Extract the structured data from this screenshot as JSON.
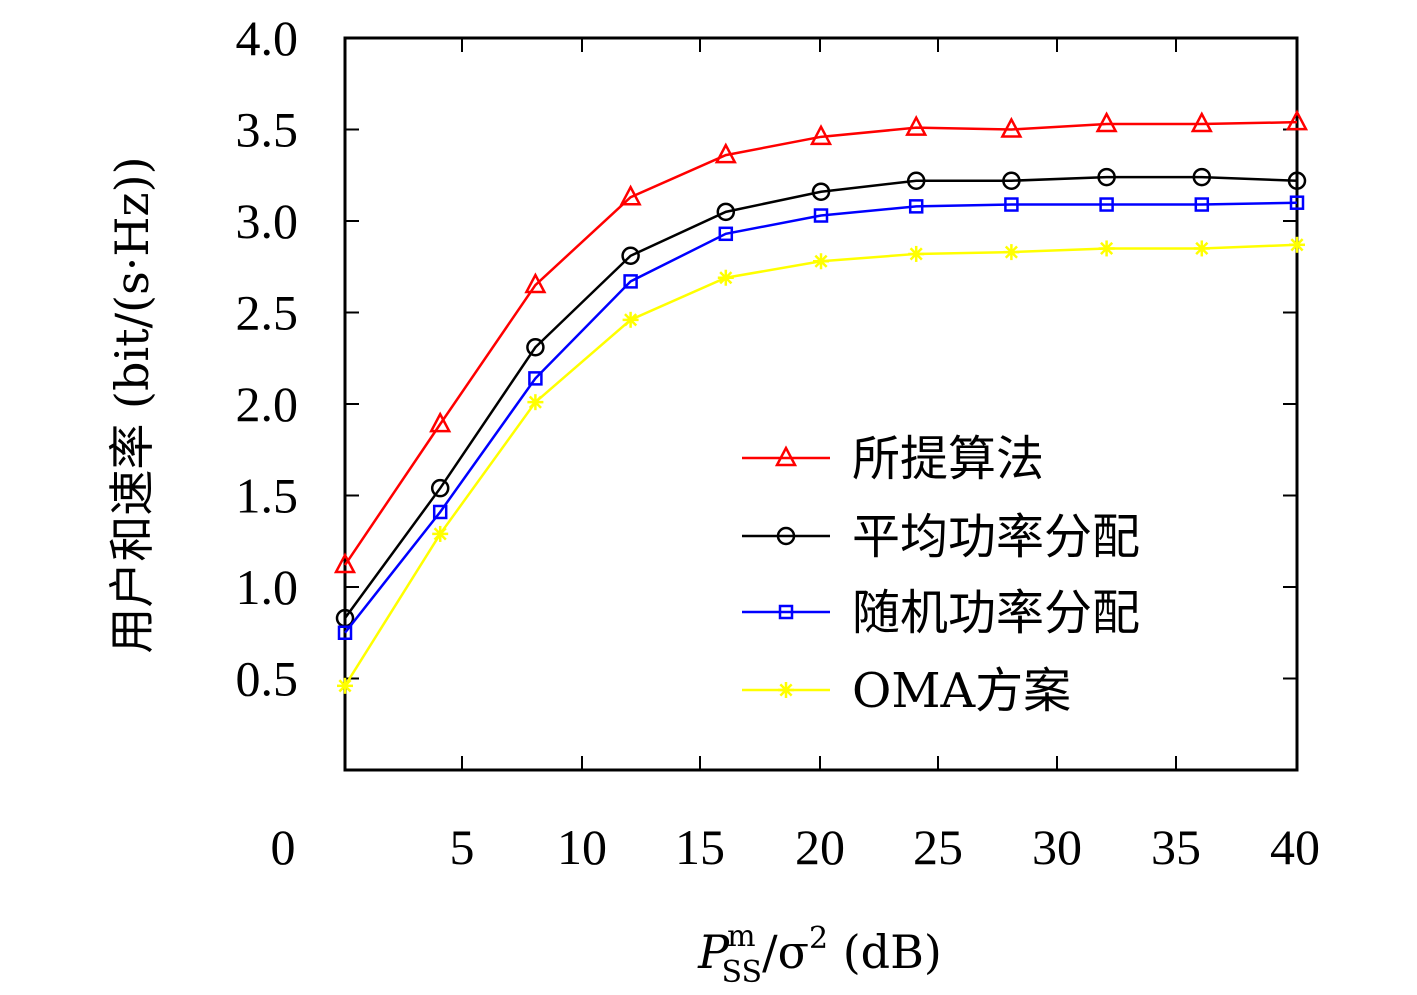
{
  "chart_data": {
    "type": "line",
    "title": "",
    "xlabel": {
      "main": "P",
      "sup": "m",
      "sub": "SS",
      "rest": "/σ",
      "sup2": "2",
      "unit": " (dB)"
    },
    "ylabel": "用户和速率 (bit/(s·Hz))",
    "xlim": [
      0,
      40
    ],
    "ylim": [
      0,
      4.0
    ],
    "x_ticks": [
      "0",
      "5",
      "10",
      "15",
      "20",
      "25",
      "30",
      "35",
      "40"
    ],
    "y_ticks": [
      "0.5",
      "1.0",
      "1.5",
      "2.0",
      "2.5",
      "3.0",
      "3.5",
      "4.0"
    ],
    "grid": false,
    "legend_position": "right-center",
    "x": [
      0,
      4,
      8,
      12,
      16,
      20,
      24,
      28,
      32,
      36,
      40
    ],
    "series": [
      {
        "name": "所提算法",
        "color": "#ff0000",
        "marker": "triangle",
        "values": [
          1.12,
          1.89,
          2.65,
          3.13,
          3.36,
          3.46,
          3.51,
          3.5,
          3.53,
          3.53,
          3.54
        ]
      },
      {
        "name": "平均功率分配",
        "color": "#000000",
        "marker": "circle",
        "values": [
          0.83,
          1.54,
          2.31,
          2.81,
          3.05,
          3.16,
          3.22,
          3.22,
          3.24,
          3.24,
          3.22
        ]
      },
      {
        "name": "随机功率分配",
        "color": "#0000ff",
        "marker": "square",
        "values": [
          0.75,
          1.41,
          2.14,
          2.67,
          2.93,
          3.03,
          3.08,
          3.09,
          3.09,
          3.09,
          3.1
        ]
      },
      {
        "name": "OMA方案",
        "color": "#ffff00",
        "marker": "asterisk",
        "values": [
          0.46,
          1.29,
          2.01,
          2.46,
          2.69,
          2.78,
          2.82,
          2.83,
          2.85,
          2.85,
          2.87
        ]
      }
    ]
  }
}
